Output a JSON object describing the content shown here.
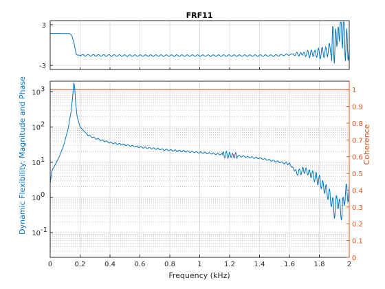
{
  "colors": {
    "response": "#0072BD",
    "coherence": "#D95319",
    "axis": "#262626",
    "grid": "#dfdfdf",
    "minor_grid": "#9a9a9a"
  },
  "chart_data": [
    {
      "id": "phase",
      "type": "line",
      "title": "FRF11",
      "xlim": [
        0,
        2
      ],
      "ylim": [
        -3.6,
        3.6
      ],
      "yticks": [
        3,
        -3
      ],
      "ytick_labels": [
        "3",
        "-3"
      ],
      "grid": true,
      "series": [
        {
          "color": "#0072BD",
          "points": [
            [
              0,
              1.72
            ],
            [
              0.13,
              1.7
            ],
            [
              0.145,
              1.4
            ],
            [
              0.16,
              0.2
            ],
            [
              0.175,
              -1.45
            ],
            [
              0.2,
              -1.5
            ],
            [
              0.5,
              -1.55
            ],
            [
              1.0,
              -1.55
            ],
            [
              1.5,
              -1.55
            ],
            [
              1.6,
              -1.4
            ],
            [
              1.7,
              -1.3
            ],
            [
              1.8,
              -1.2
            ],
            [
              1.85,
              -1.0
            ],
            [
              1.9,
              0.0
            ],
            [
              1.95,
              3.0
            ],
            [
              2.0,
              -1.5
            ]
          ]
        }
      ]
    },
    {
      "id": "magnitude",
      "type": "line",
      "xlabel": "Frequency (kHz)",
      "ylabel": "Dynamic Flexibility: Magnitude and Phase",
      "ylabel_right": "Coherence",
      "xlim": [
        0,
        2
      ],
      "xticks": [
        0,
        0.2,
        0.4,
        0.6,
        0.8,
        1,
        1.2,
        1.4,
        1.6,
        1.8,
        2
      ],
      "xtick_labels": [
        "0",
        "0.2",
        "0.4",
        "0.6",
        "0.8",
        "1",
        "1.2",
        "1.4",
        "1.6",
        "1.8",
        "2"
      ],
      "y_scale": "log",
      "ylim": [
        0.02,
        2000
      ],
      "yticks_left": [
        "10^-1",
        "10^0",
        "10^1",
        "10^2",
        "10^3"
      ],
      "ylim_right": [
        0,
        1.05
      ],
      "yticks_right": [
        "0",
        "0.1",
        "0.2",
        "0.3",
        "0.4",
        "0.5",
        "0.6",
        "0.7",
        "0.8",
        "0.9",
        "1"
      ],
      "grid": true,
      "minor_grid": true,
      "series": [
        {
          "axis": "left",
          "color": "#0072BD",
          "points": [
            [
              0,
              2.5
            ],
            [
              0.01,
              5.5
            ],
            [
              0.03,
              8
            ],
            [
              0.06,
              14
            ],
            [
              0.09,
              30
            ],
            [
              0.12,
              90
            ],
            [
              0.14,
              280
            ],
            [
              0.15,
              700
            ],
            [
              0.158,
              1800
            ],
            [
              0.163,
              1500
            ],
            [
              0.17,
              500
            ],
            [
              0.18,
              200
            ],
            [
              0.2,
              100
            ],
            [
              0.25,
              60
            ],
            [
              0.3,
              48
            ],
            [
              0.4,
              36
            ],
            [
              0.6,
              27
            ],
            [
              0.8,
              22
            ],
            [
              1.0,
              19
            ],
            [
              1.2,
              16
            ],
            [
              1.4,
              13
            ],
            [
              1.6,
              9
            ],
            [
              1.65,
              5
            ],
            [
              1.7,
              6
            ],
            [
              1.75,
              4.5
            ],
            [
              1.8,
              3
            ],
            [
              1.85,
              1.5
            ],
            [
              1.88,
              0.9
            ],
            [
              1.9,
              0.4
            ],
            [
              1.92,
              0.9
            ],
            [
              1.95,
              0.35
            ],
            [
              1.97,
              1.2
            ],
            [
              2.0,
              1.5
            ]
          ]
        },
        {
          "axis": "right",
          "color": "#D95319",
          "points": [
            [
              0,
              1.0
            ],
            [
              2.0,
              1.0
            ]
          ]
        }
      ]
    }
  ]
}
